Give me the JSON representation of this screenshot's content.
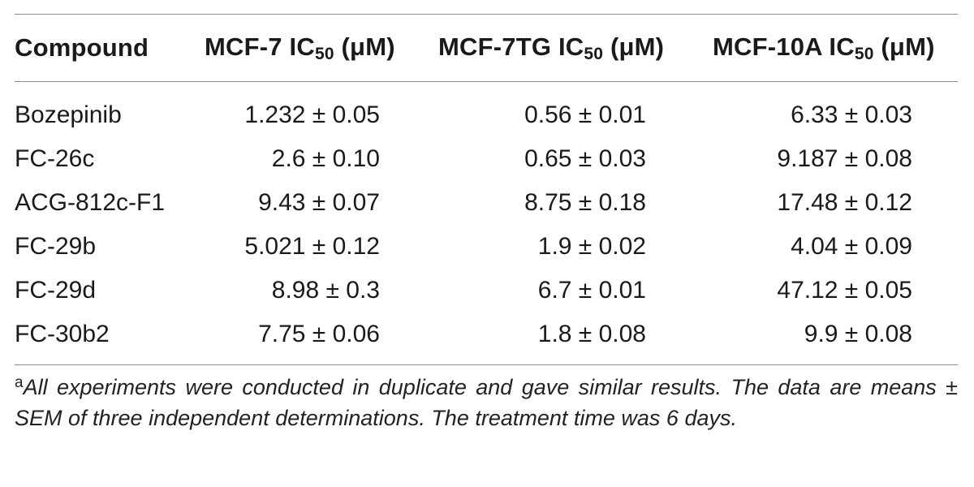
{
  "table": {
    "headers": {
      "compound": "Compound",
      "mcf7": {
        "prefix": "MCF-7 IC",
        "sub": "50",
        "unit": " (μM)"
      },
      "mcf7tg": {
        "prefix": "MCF-7TG IC",
        "sub": "50",
        "unit": " (μM)"
      },
      "mcf10a": {
        "prefix": "MCF-10A IC",
        "sub": "50",
        "unit": " (μM)"
      }
    },
    "rows": [
      {
        "compound": "Bozepinib",
        "mcf7": "1.232 ± 0.05",
        "mcf7tg": "0.56 ± 0.01",
        "mcf10a": "6.33 ± 0.03"
      },
      {
        "compound": "FC-26c",
        "mcf7": "2.6 ± 0.10",
        "mcf7tg": "0.65 ± 0.03",
        "mcf10a": "9.187 ± 0.08"
      },
      {
        "compound": "ACG-812c-F1",
        "mcf7": "9.43 ± 0.07",
        "mcf7tg": "8.75 ± 0.18",
        "mcf10a": "17.48 ± 0.12"
      },
      {
        "compound": "FC-29b",
        "mcf7": "5.021 ± 0.12",
        "mcf7tg": "1.9 ± 0.02",
        "mcf10a": "4.04 ± 0.09"
      },
      {
        "compound": "FC-29d",
        "mcf7": "8.98 ± 0.3",
        "mcf7tg": "6.7 ± 0.01",
        "mcf10a": "47.12 ± 0.05"
      },
      {
        "compound": "FC-30b2",
        "mcf7": "7.75 ± 0.06",
        "mcf7tg": "1.8 ± 0.08",
        "mcf10a": "9.9 ± 0.08"
      }
    ]
  },
  "footnote": {
    "marker": "a",
    "text": "All experiments were conducted in duplicate and gave similar results. The data are means ± SEM of three independent determinations. The treatment time was 6 days."
  }
}
